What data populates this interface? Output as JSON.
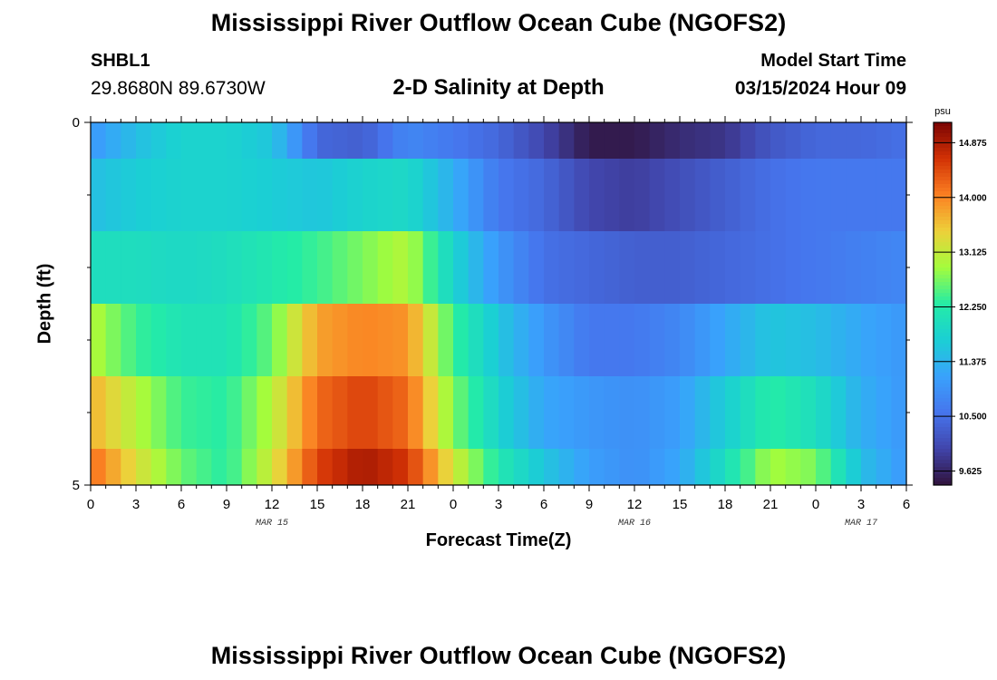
{
  "header": {
    "title": "Mississippi River Outflow Ocean Cube (NGOFS2)",
    "station_id": "SHBL1",
    "station_coords": "29.8680N  89.6730W",
    "subtitle": "2-D Salinity at Depth",
    "start_label": "Model Start Time",
    "start_value": "03/15/2024 Hour 09"
  },
  "footer": {
    "title": "Mississippi River Outflow Ocean Cube (NGOFS2)"
  },
  "chart_data": {
    "type": "heatmap",
    "xlabel": "Forecast Time(Z)",
    "ylabel": "Depth (ft)",
    "x_tick_labels": [
      "0",
      "3",
      "6",
      "9",
      "12",
      "15",
      "18",
      "21",
      "0",
      "3",
      "6",
      "9",
      "12",
      "15",
      "18",
      "21",
      "0",
      "3",
      "6"
    ],
    "date_labels": [
      {
        "label": "MAR 15",
        "tick_index": 4
      },
      {
        "label": "MAR 16",
        "tick_index": 12
      },
      {
        "label": "MAR 17",
        "tick_index": 17
      }
    ],
    "y_tick_labels": [
      "0",
      "5"
    ],
    "ylim": [
      0,
      5
    ],
    "colorbar": {
      "unit": "psu",
      "tick_labels": [
        "14.875",
        "14.000",
        "13.125",
        "12.250",
        "11.375",
        "10.500",
        "9.625"
      ],
      "min": 9.4,
      "max": 15.2
    },
    "x_hours": [
      0,
      3,
      6,
      9,
      12,
      15,
      18,
      21,
      24,
      27,
      30,
      33,
      36,
      39,
      42,
      45,
      48,
      51,
      54
    ],
    "rows": [
      {
        "depth_range": [
          0.0,
          0.5
        ],
        "values": [
          11.0,
          11.5,
          11.8,
          11.8,
          11.6,
          10.4,
          10.3,
          10.8,
          10.6,
          10.4,
          10.0,
          9.5,
          9.5,
          9.7,
          9.8,
          10.2,
          10.4,
          10.4,
          10.5
        ]
      },
      {
        "depth_range": [
          0.5,
          1.5
        ],
        "values": [
          11.5,
          11.7,
          11.8,
          11.8,
          11.7,
          11.6,
          11.8,
          11.9,
          11.3,
          10.6,
          10.4,
          10.0,
          9.9,
          10.1,
          10.3,
          10.5,
          10.6,
          10.6,
          10.6
        ]
      },
      {
        "depth_range": [
          1.5,
          2.5
        ],
        "values": [
          12.0,
          12.0,
          11.9,
          12.0,
          12.2,
          12.4,
          12.7,
          13.0,
          11.8,
          11.0,
          10.5,
          10.4,
          10.3,
          10.3,
          10.4,
          10.5,
          10.6,
          10.7,
          10.8
        ]
      },
      {
        "depth_range": [
          2.5,
          3.5
        ],
        "values": [
          13.0,
          12.4,
          12.1,
          12.1,
          12.6,
          13.8,
          14.0,
          13.9,
          12.4,
          11.6,
          11.0,
          10.6,
          10.6,
          10.8,
          11.2,
          11.6,
          11.5,
          11.2,
          11.0
        ]
      },
      {
        "depth_range": [
          3.5,
          4.5
        ],
        "values": [
          13.7,
          13.0,
          12.4,
          12.3,
          13.0,
          14.2,
          14.5,
          14.2,
          12.7,
          11.8,
          11.2,
          11.0,
          10.9,
          11.1,
          11.7,
          12.3,
          12.0,
          11.3,
          11.0
        ]
      },
      {
        "depth_range": [
          4.5,
          5.0
        ],
        "values": [
          14.2,
          13.3,
          12.6,
          12.3,
          13.2,
          14.5,
          14.9,
          14.6,
          13.2,
          12.2,
          11.6,
          11.1,
          10.9,
          11.2,
          12.0,
          12.9,
          12.7,
          11.5,
          11.0
        ]
      }
    ]
  }
}
